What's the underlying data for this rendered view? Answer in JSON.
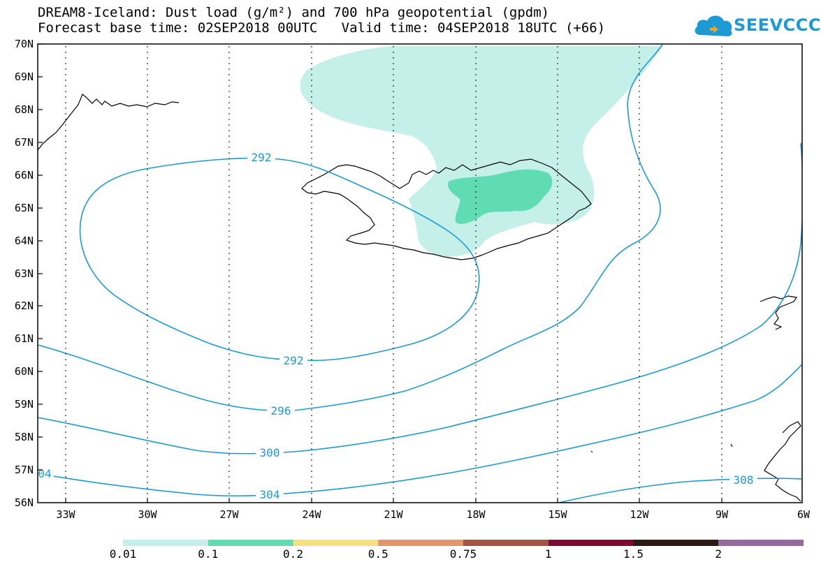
{
  "title": {
    "line1": "DREAM8-Iceland: Dust load (g/m²) and 700 hPa geopotential (gpdm)",
    "line2": "Forecast base time: 02SEP2018 00UTC   Valid time: 04SEP2018 18UTC (+66)"
  },
  "logo": {
    "text": "SEEVCCC",
    "icon": "cloud-logo-icon",
    "color": "#1b9ad6"
  },
  "map": {
    "lat_labels": [
      "70N",
      "69N",
      "68N",
      "67N",
      "66N",
      "65N",
      "64N",
      "63N",
      "62N",
      "61N",
      "60N",
      "59N",
      "58N",
      "57N",
      "56N"
    ],
    "lon_labels": [
      "33W",
      "30W",
      "27W",
      "24W",
      "21W",
      "18W",
      "15W",
      "12W",
      "9W",
      "6W"
    ],
    "contour_color": "#1b9ad6",
    "contour_labels": [
      {
        "text": "292"
      },
      {
        "text": "292"
      },
      {
        "text": "296"
      },
      {
        "text": "300"
      },
      {
        "text": "304"
      },
      {
        "text": "04"
      },
      {
        "text": "308"
      }
    ]
  },
  "colorbar": {
    "colors": [
      "#c5f0ea",
      "#5fdcb2",
      "#f4e27a",
      "#e6946a",
      "#a65346",
      "#7e0a31",
      "#2b1b14",
      "#95699d"
    ],
    "labels": [
      "0.01",
      "0.1",
      "0.2",
      "0.5",
      "0.75",
      "1",
      "1.5",
      "2"
    ]
  }
}
